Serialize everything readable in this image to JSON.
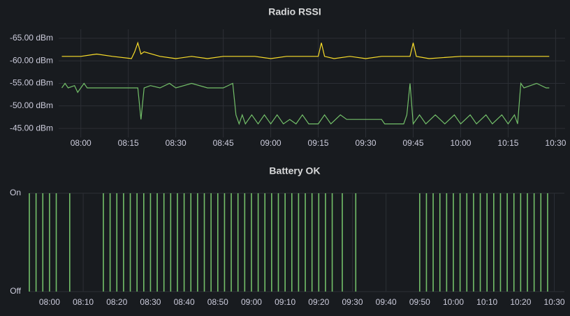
{
  "chart_data": [
    {
      "type": "line",
      "title": "Radio RSSI",
      "xlim": [
        "07:53",
        "10:33"
      ],
      "xticks": [
        "08:00",
        "08:15",
        "08:30",
        "08:45",
        "09:00",
        "09:15",
        "09:30",
        "09:45",
        "10:00",
        "10:15",
        "10:30"
      ],
      "ylim": [
        -43,
        -67
      ],
      "yticks": [
        {
          "value": -45,
          "label": "-45.00 dBm"
        },
        {
          "value": -50,
          "label": "-50.00 dBm"
        },
        {
          "value": -55,
          "label": "-55.00 dBm"
        },
        {
          "value": -60,
          "label": "-60.00 dBm"
        },
        {
          "value": -65,
          "label": "-65.00 dBm"
        }
      ],
      "grid": true,
      "series": [
        {
          "color": "#73bf69",
          "x": [
            "07:54",
            "07:55",
            "07:56",
            "07:58",
            "07:59",
            "08:00",
            "08:01",
            "08:02",
            "08:05",
            "08:10",
            "08:18",
            "08:19",
            "08:20",
            "08:22",
            "08:25",
            "08:28",
            "08:30",
            "08:35",
            "08:40",
            "08:45",
            "08:48",
            "08:49",
            "08:50",
            "08:51",
            "08:52",
            "08:54",
            "08:56",
            "08:58",
            "09:00",
            "09:02",
            "09:04",
            "09:06",
            "09:08",
            "09:10",
            "09:12",
            "09:15",
            "09:17",
            "09:19",
            "09:22",
            "09:24",
            "09:30",
            "09:35",
            "09:36",
            "09:42",
            "09:43",
            "09:44",
            "09:45",
            "09:47",
            "09:49",
            "09:52",
            "09:55",
            "09:58",
            "10:00",
            "10:03",
            "10:05",
            "10:08",
            "10:10",
            "10:13",
            "10:15",
            "10:17",
            "10:18",
            "10:19",
            "10:20",
            "10:24",
            "10:27",
            "10:28"
          ],
          "values": [
            -54,
            -55,
            -54,
            -54.5,
            -53,
            -54,
            -55,
            -54,
            -54,
            -54,
            -54,
            -47,
            -54,
            -54.5,
            -54,
            -55,
            -54,
            -55,
            -54,
            -54,
            -55,
            -48,
            -46,
            -48,
            -46,
            -48,
            -46,
            -48,
            -46,
            -48,
            -46,
            -47,
            -46,
            -48,
            -46,
            -46,
            -48,
            -46,
            -48,
            -47,
            -47,
            -47,
            -46,
            -46,
            -48,
            -55,
            -46,
            -48,
            -46,
            -48,
            -46,
            -48,
            -46,
            -48,
            -46,
            -48,
            -46,
            -48,
            -46,
            -48,
            -46,
            -55,
            -54,
            -55,
            -54,
            -54
          ]
        },
        {
          "color": "#fade2a",
          "x": [
            "07:54",
            "08:00",
            "08:05",
            "08:10",
            "08:16",
            "08:17",
            "08:18",
            "08:19",
            "08:20",
            "08:25",
            "08:30",
            "08:35",
            "08:40",
            "08:45",
            "08:50",
            "08:55",
            "09:00",
            "09:05",
            "09:10",
            "09:15",
            "09:16",
            "09:17",
            "09:20",
            "09:25",
            "09:30",
            "09:35",
            "09:40",
            "09:44",
            "09:45",
            "09:46",
            "09:50",
            "10:00",
            "10:10",
            "10:20",
            "10:28"
          ],
          "values": [
            -61,
            -61,
            -61.5,
            -61,
            -60.5,
            -62,
            -64,
            -61.5,
            -62,
            -61,
            -60.5,
            -61,
            -60.5,
            -61,
            -61,
            -61,
            -60.5,
            -61,
            -61,
            -61,
            -64,
            -61,
            -60.5,
            -61,
            -60.5,
            -61,
            -61,
            -61,
            -64,
            -61,
            -60.5,
            -61,
            -61,
            -61,
            -61
          ]
        }
      ]
    },
    {
      "type": "bar",
      "title": "Battery OK",
      "xlim": [
        "07:54",
        "10:33"
      ],
      "xticks": [
        "08:00",
        "08:10",
        "08:20",
        "08:30",
        "08:40",
        "08:50",
        "09:00",
        "09:10",
        "09:20",
        "09:30",
        "09:40",
        "09:50",
        "10:00",
        "10:10",
        "10:20",
        "10:30"
      ],
      "ylim": [
        0,
        1
      ],
      "yticks": [
        {
          "value": 0,
          "label": "Off"
        },
        {
          "value": 1,
          "label": "On"
        }
      ],
      "grid": true,
      "color": "#73bf69",
      "x": [
        "07:54",
        "07:56",
        "07:58",
        "08:00",
        "08:02",
        "08:06",
        "08:16",
        "08:18",
        "08:20",
        "08:22",
        "08:24",
        "08:26",
        "08:28",
        "08:30",
        "08:32",
        "08:34",
        "08:36",
        "08:38",
        "08:40",
        "08:42",
        "08:44",
        "08:46",
        "08:48",
        "08:50",
        "08:52",
        "08:54",
        "08:56",
        "08:58",
        "09:00",
        "09:02",
        "09:04",
        "09:06",
        "09:08",
        "09:10",
        "09:12",
        "09:14",
        "09:16",
        "09:18",
        "09:20",
        "09:22",
        "09:24",
        "09:27",
        "09:31",
        "09:50",
        "09:52",
        "09:54",
        "09:56",
        "09:58",
        "10:00",
        "10:02",
        "10:04",
        "10:06",
        "10:08",
        "10:10",
        "10:12",
        "10:14",
        "10:16",
        "10:18",
        "10:20",
        "10:22",
        "10:24",
        "10:26",
        "10:28"
      ],
      "values": [
        1,
        1,
        1,
        1,
        1,
        1,
        1,
        1,
        1,
        1,
        1,
        1,
        1,
        1,
        1,
        1,
        1,
        1,
        1,
        1,
        1,
        1,
        1,
        1,
        1,
        1,
        1,
        1,
        1,
        1,
        1,
        1,
        1,
        1,
        1,
        1,
        1,
        1,
        1,
        1,
        1,
        1,
        1,
        1,
        1,
        1,
        1,
        1,
        1,
        1,
        1,
        1,
        1,
        1,
        1,
        1,
        1,
        1,
        1,
        1,
        1,
        1,
        1
      ]
    }
  ]
}
